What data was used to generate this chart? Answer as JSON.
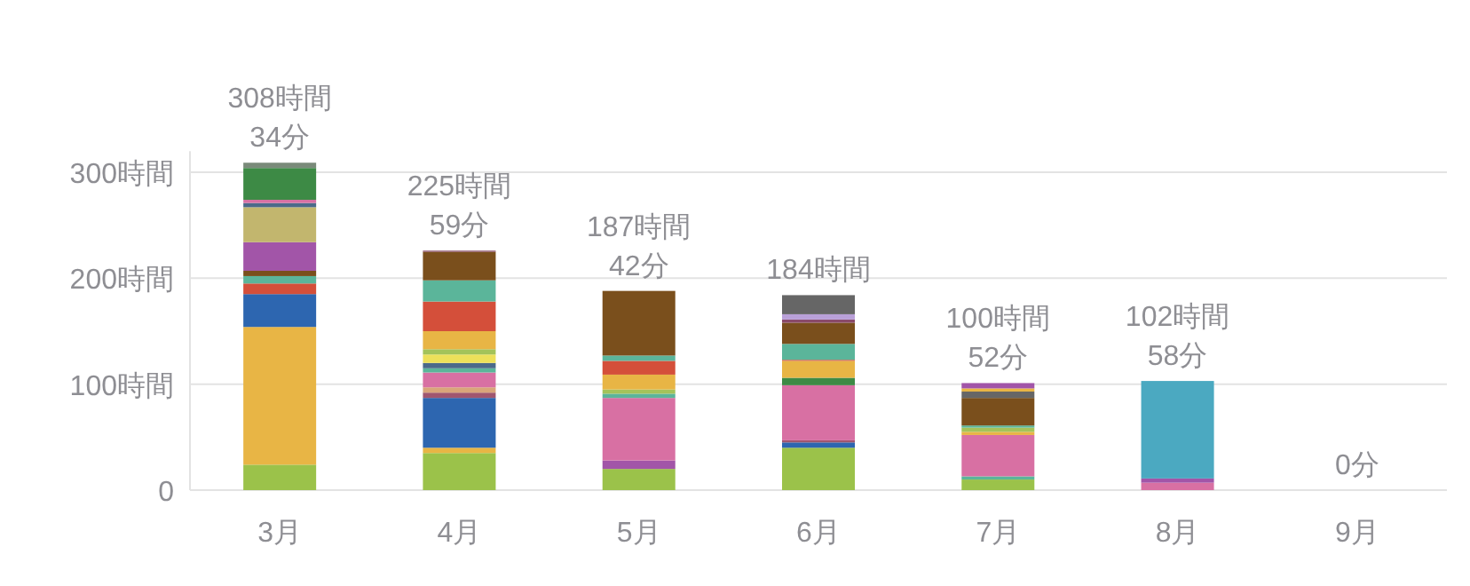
{
  "chart_data": {
    "type": "bar",
    "stacked": true,
    "categories": [
      "3月",
      "4月",
      "5月",
      "6月",
      "7月",
      "8月",
      "9月"
    ],
    "ylim": [
      0,
      320
    ],
    "yticks": [
      0,
      {
        "value": 100,
        "label": "100時間"
      },
      {
        "value": 200,
        "label": "200時間"
      },
      {
        "value": 300,
        "label": "300時間"
      }
    ],
    "grid": "y",
    "totals": [
      "308時間 34分",
      "225時間 59分",
      "187時間 42分",
      "184時間",
      "100時間 52分",
      "102時間 58分",
      "0分"
    ],
    "series": [
      {
        "values": [
          24,
          35,
          20,
          40,
          10,
          7,
          null
        ],
        "colors": [
          "#9bc24a",
          "#9bc24a",
          "#9bc24a",
          "#9bc24a",
          "#9bc24a",
          "#d870a3",
          null
        ]
      },
      {
        "values": [
          130,
          5,
          8,
          5,
          3,
          4,
          null
        ],
        "colors": [
          "#e8b545",
          "#e8b545",
          "#a255a8",
          "#2d66b0",
          "#5bb59a",
          "#a255a8",
          null
        ]
      },
      {
        "values": [
          31,
          47,
          59,
          2,
          39,
          92,
          null
        ],
        "colors": [
          "#2d66b0",
          "#2d66b0",
          "#d870a3",
          "#a0566f",
          "#d870a3",
          "#4ba9c1",
          null
        ]
      },
      {
        "values": [
          10,
          5,
          4,
          52,
          3,
          null,
          null
        ],
        "colors": [
          "#d44f3a",
          "#a0566f",
          "#5bb59a",
          "#d870a3",
          "#e8b545",
          null,
          null
        ]
      },
      {
        "values": [
          7,
          5,
          4,
          7,
          4,
          null,
          null
        ],
        "colors": [
          "#5bb59a",
          "#d9a57a",
          "#a4c35a",
          "#3d8a45",
          "#a4c35a",
          null,
          null
        ]
      },
      {
        "values": [
          5,
          14,
          14,
          16,
          2,
          null,
          null
        ],
        "colors": [
          "#7a4f1c",
          "#d870a3",
          "#e8b545",
          "#e8b545",
          "#5bb59a",
          null,
          null
        ]
      },
      {
        "values": [
          27,
          4,
          13,
          1,
          26,
          null,
          null
        ],
        "colors": [
          "#a255a8",
          "#5bb59a",
          "#d44f3a",
          "#d44f3a",
          "#7a4f1c",
          null,
          null
        ]
      },
      {
        "values": [
          33,
          5,
          5,
          15,
          6,
          null,
          null
        ],
        "colors": [
          "#c2b66e",
          "#4b6a8a",
          "#5bb59a",
          "#5bb59a",
          "#666666",
          null,
          null
        ]
      },
      {
        "values": [
          4,
          8,
          61,
          20,
          3,
          null,
          null
        ],
        "colors": [
          "#4b6a8a",
          "#ede05a",
          "#7a4f1c",
          "#7a4f1c",
          "#e8b545",
          null,
          null
        ]
      },
      {
        "values": [
          3,
          5,
          null,
          3,
          5,
          null,
          null
        ],
        "colors": [
          "#d870a3",
          "#a4c35a",
          null,
          "#8a4a6a",
          "#a255a8",
          null,
          null
        ]
      },
      {
        "values": [
          30,
          17,
          null,
          5,
          null,
          null,
          null
        ],
        "colors": [
          "#3d8a45",
          "#e8b545",
          null,
          "#b9a0d8",
          null,
          null,
          null
        ]
      },
      {
        "values": [
          5,
          28,
          null,
          18,
          null,
          null,
          null
        ],
        "colors": [
          "#7a8a7a",
          "#d44f3a",
          null,
          "#666666",
          null,
          null,
          null
        ]
      },
      {
        "values": [
          null,
          20,
          null,
          null,
          null,
          null,
          null
        ],
        "colors": [
          null,
          "#5bb59a",
          null,
          null,
          null,
          null,
          null
        ]
      },
      {
        "values": [
          null,
          27,
          null,
          null,
          null,
          null,
          null
        ],
        "colors": [
          null,
          "#7a4f1c",
          null,
          null,
          null,
          null,
          null
        ]
      },
      {
        "values": [
          null,
          1,
          null,
          null,
          null,
          null,
          null
        ],
        "colors": [
          null,
          "#8a4a6a",
          null,
          null,
          null,
          null,
          null
        ]
      }
    ]
  }
}
